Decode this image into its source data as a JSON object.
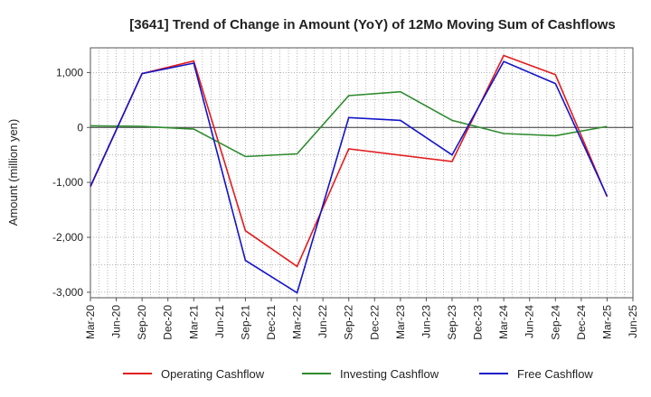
{
  "chart_data": {
    "type": "line",
    "title": "[3641]  Trend of Change in Amount (YoY) of 12Mo Moving Sum of Cashflows",
    "xlabel": "",
    "ylabel": "Amount (million yen)",
    "ylim": [
      -3100,
      1450
    ],
    "yticks": [
      1000,
      0,
      -1000,
      -2000,
      -3000
    ],
    "ytick_labels": [
      "1,000",
      "0",
      "-1,000",
      "-2,000",
      "-3,000"
    ],
    "grid": true,
    "legend_position": "bottom",
    "x_tick_labels": [
      "Mar-20",
      "Jun-20",
      "Sep-20",
      "Dec-20",
      "Mar-21",
      "Jun-21",
      "Sep-21",
      "Dec-21",
      "Mar-22",
      "Jun-22",
      "Sep-22",
      "Dec-22",
      "Mar-23",
      "Jun-23",
      "Sep-23",
      "Dec-23",
      "Mar-24",
      "Jun-24",
      "Sep-24",
      "Dec-24",
      "Mar-25",
      "Jun-25"
    ],
    "series": [
      {
        "name": "Operating Cashflow",
        "color": "#e31a1c",
        "points": [
          {
            "x": "Mar-20",
            "y": -1080
          },
          {
            "x": "Sep-20",
            "y": 980
          },
          {
            "x": "Mar-21",
            "y": 1210
          },
          {
            "x": "Sep-21",
            "y": -1880
          },
          {
            "x": "Mar-22",
            "y": -2530
          },
          {
            "x": "Sep-22",
            "y": -390
          },
          {
            "x": "Sep-23",
            "y": -620
          },
          {
            "x": "Mar-24",
            "y": 1310
          },
          {
            "x": "Sep-24",
            "y": 960
          },
          {
            "x": "Mar-25",
            "y": -1260
          }
        ]
      },
      {
        "name": "Investing Cashflow",
        "color": "#2e8b2e",
        "points": [
          {
            "x": "Mar-20",
            "y": 30
          },
          {
            "x": "Sep-20",
            "y": 20
          },
          {
            "x": "Mar-21",
            "y": -30
          },
          {
            "x": "Sep-21",
            "y": -530
          },
          {
            "x": "Mar-22",
            "y": -480
          },
          {
            "x": "Sep-22",
            "y": 580
          },
          {
            "x": "Mar-23",
            "y": 650
          },
          {
            "x": "Sep-23",
            "y": 130
          },
          {
            "x": "Mar-24",
            "y": -110
          },
          {
            "x": "Sep-24",
            "y": -150
          },
          {
            "x": "Mar-25",
            "y": 20
          }
        ]
      },
      {
        "name": "Free Cashflow",
        "color": "#1414c8",
        "points": [
          {
            "x": "Mar-20",
            "y": -1070
          },
          {
            "x": "Sep-20",
            "y": 980
          },
          {
            "x": "Mar-21",
            "y": 1170
          },
          {
            "x": "Sep-21",
            "y": -2420
          },
          {
            "x": "Mar-22",
            "y": -3010
          },
          {
            "x": "Sep-22",
            "y": 180
          },
          {
            "x": "Mar-23",
            "y": 130
          },
          {
            "x": "Sep-23",
            "y": -500
          },
          {
            "x": "Mar-24",
            "y": 1200
          },
          {
            "x": "Sep-24",
            "y": 800
          },
          {
            "x": "Mar-25",
            "y": -1250
          }
        ]
      }
    ]
  }
}
